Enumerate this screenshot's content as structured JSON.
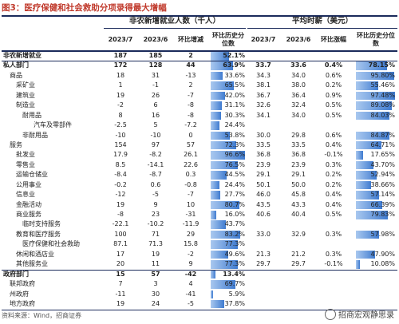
{
  "title": "图3：医疗保健和社会救助分项录得最大增幅",
  "headers": {
    "group_jobs": "非农新增就业人数（千人）",
    "group_wage": "平均时薪（美元）",
    "cols": [
      "2023/7",
      "2023/6",
      "环比增减",
      "环比历史分位数",
      "2023/7",
      "2023/6",
      "环比涨幅",
      "环比历史分位数"
    ]
  },
  "rows": [
    {
      "name": "非农新增就业",
      "bold": true,
      "indent": 0,
      "j7": "187",
      "j6": "185",
      "jd": "2",
      "jp": "52.1%",
      "jpv": 52.1,
      "w7": "",
      "w6": "",
      "wd": "",
      "wp": "",
      "wpv": null
    },
    {
      "name": "私人部门",
      "bold": true,
      "indent": 0,
      "j7": "172",
      "j6": "128",
      "jd": "44",
      "jp": "63.9%",
      "jpv": 63.9,
      "w7": "33.7",
      "w6": "33.6",
      "wd": "0.4%",
      "wp": "78.15%",
      "wpv": 78.15
    },
    {
      "name": "商品",
      "bold": false,
      "indent": 1,
      "j7": "18",
      "j6": "31",
      "jd": "-13",
      "jp": "33.6%",
      "jpv": 33.6,
      "w7": "34.3",
      "w6": "34.0",
      "wd": "0.6%",
      "wp": "95.80%",
      "wpv": 95.8
    },
    {
      "name": "采矿业",
      "bold": false,
      "indent": 2,
      "j7": "1",
      "j6": "-1",
      "jd": "2",
      "jp": "65.5%",
      "jpv": 65.5,
      "w7": "38.1",
      "w6": "38.0",
      "wd": "0.2%",
      "wp": "55.46%",
      "wpv": 55.46
    },
    {
      "name": "建筑业",
      "bold": false,
      "indent": 2,
      "j7": "19",
      "j6": "26",
      "jd": "-7",
      "jp": "42.0%",
      "jpv": 42.0,
      "w7": "36.7",
      "w6": "36.4",
      "wd": "0.9%",
      "wp": "97.48%",
      "wpv": 97.48
    },
    {
      "name": "制造业",
      "bold": false,
      "indent": 2,
      "j7": "-2",
      "j6": "6",
      "jd": "-8",
      "jp": "31.1%",
      "jpv": 31.1,
      "w7": "32.6",
      "w6": "32.4",
      "wd": "0.5%",
      "wp": "89.08%",
      "wpv": 89.08
    },
    {
      "name": "耐用品",
      "bold": false,
      "indent": 3,
      "j7": "8",
      "j6": "16",
      "jd": "-8",
      "jp": "30.3%",
      "jpv": 30.3,
      "w7": "34.1",
      "w6": "34.0",
      "wd": "0.5%",
      "wp": "84.03%",
      "wpv": 84.03
    },
    {
      "name": "汽车及零部件",
      "bold": false,
      "indent": 4,
      "j7": "-2.5",
      "j6": "5",
      "jd": "-7.2",
      "jp": "24.4%",
      "jpv": 24.4,
      "w7": "",
      "w6": "",
      "wd": "",
      "wp": "",
      "wpv": null
    },
    {
      "name": "非耐用品",
      "bold": false,
      "indent": 3,
      "j7": "-10",
      "j6": "-10",
      "jd": "0",
      "jp": "53.8%",
      "jpv": 53.8,
      "w7": "30.0",
      "w6": "29.8",
      "wd": "0.6%",
      "wp": "84.87%",
      "wpv": 84.87
    },
    {
      "name": "服务",
      "bold": false,
      "indent": 1,
      "j7": "154",
      "j6": "97",
      "jd": "57",
      "jp": "72.3%",
      "jpv": 72.3,
      "w7": "33.5",
      "w6": "33.5",
      "wd": "0.4%",
      "wp": "64.71%",
      "wpv": 64.71
    },
    {
      "name": "批发业",
      "bold": false,
      "indent": 2,
      "j7": "17.9",
      "j6": "-8.2",
      "jd": "26.1",
      "jp": "96.6%",
      "jpv": 96.6,
      "w7": "36.8",
      "w6": "36.8",
      "wd": "-0.1%",
      "wp": "17.65%",
      "wpv": 17.65
    },
    {
      "name": "零售业",
      "bold": false,
      "indent": 2,
      "j7": "8.5",
      "j6": "-14.1",
      "jd": "22.6",
      "jp": "76.5%",
      "jpv": 76.5,
      "w7": "23.9",
      "w6": "23.9",
      "wd": "0.3%",
      "wp": "43.70%",
      "wpv": 43.7
    },
    {
      "name": "运输仓储业",
      "bold": false,
      "indent": 2,
      "j7": "-8.4",
      "j6": "-8.7",
      "jd": "0.3",
      "jp": "44.5%",
      "jpv": 44.5,
      "w7": "29.1",
      "w6": "29.1",
      "wd": "0.2%",
      "wp": "52.94%",
      "wpv": 52.94
    },
    {
      "name": "公用事业",
      "bold": false,
      "indent": 2,
      "j7": "-0.2",
      "j6": "0.6",
      "jd": "-0.8",
      "jp": "24.4%",
      "jpv": 24.4,
      "w7": "50.1",
      "w6": "50.0",
      "wd": "0.2%",
      "wp": "38.66%",
      "wpv": 38.66
    },
    {
      "name": "信息业",
      "bold": false,
      "indent": 2,
      "j7": "-12",
      "j6": "-5",
      "jd": "-7",
      "jp": "27.7%",
      "jpv": 27.7,
      "w7": "46.0",
      "w6": "45.8",
      "wd": "0.4%",
      "wp": "57.14%",
      "wpv": 57.14
    },
    {
      "name": "金融活动",
      "bold": false,
      "indent": 2,
      "j7": "19",
      "j6": "9",
      "jd": "10",
      "jp": "80.7%",
      "jpv": 80.7,
      "w7": "43.5",
      "w6": "43.3",
      "wd": "0.4%",
      "wp": "66.39%",
      "wpv": 66.39
    },
    {
      "name": "商业服务",
      "bold": false,
      "indent": 2,
      "j7": "-8",
      "j6": "23",
      "jd": "-31",
      "jp": "16.0%",
      "jpv": 16.0,
      "w7": "40.6",
      "w6": "40.4",
      "wd": "0.5%",
      "wp": "79.83%",
      "wpv": 79.83
    },
    {
      "name": "临时支持服务",
      "bold": false,
      "indent": 3,
      "j7": "-22.1",
      "j6": "-10.2",
      "jd": "-11.9",
      "jp": "43.7%",
      "jpv": 43.7,
      "w7": "",
      "w6": "",
      "wd": "",
      "wp": "",
      "wpv": null
    },
    {
      "name": "教育和医疗服务",
      "bold": false,
      "indent": 2,
      "j7": "100",
      "j6": "71",
      "jd": "29",
      "jp": "83.2%",
      "jpv": 83.2,
      "w7": "33.0",
      "w6": "32.9",
      "wd": "0.3%",
      "wp": "57.98%",
      "wpv": 57.98
    },
    {
      "name": "医疗保健和社会救助",
      "bold": false,
      "indent": 3,
      "j7": "87.1",
      "j6": "71.3",
      "jd": "15.8",
      "jp": "77.3%",
      "jpv": 77.3,
      "w7": "",
      "w6": "",
      "wd": "",
      "wp": "",
      "wpv": null
    },
    {
      "name": "休闲和酒店业",
      "bold": false,
      "indent": 2,
      "j7": "17",
      "j6": "19",
      "jd": "-2",
      "jp": "49.6%",
      "jpv": 49.6,
      "w7": "21.3",
      "w6": "21.2",
      "wd": "0.3%",
      "wp": "47.90%",
      "wpv": 47.9
    },
    {
      "name": "其他服务业",
      "bold": false,
      "indent": 2,
      "j7": "20",
      "j6": "11",
      "jd": "9",
      "jp": "77.3%",
      "jpv": 77.3,
      "w7": "29.7",
      "w6": "29.7",
      "wd": "-0.1%",
      "wp": "10.08%",
      "wpv": 10.08
    },
    {
      "name": "政府部门",
      "bold": true,
      "indent": 0,
      "j7": "15",
      "j6": "57",
      "jd": "-42",
      "jp": "13.4%",
      "jpv": 13.4,
      "w7": "",
      "w6": "",
      "wd": "",
      "wp": "",
      "wpv": null
    },
    {
      "name": "联邦政府",
      "bold": false,
      "indent": 1,
      "j7": "7",
      "j6": "3",
      "jd": "4",
      "jp": "69.7%",
      "jpv": 69.7,
      "w7": "",
      "w6": "",
      "wd": "",
      "wp": "",
      "wpv": null
    },
    {
      "name": "州政府",
      "bold": false,
      "indent": 1,
      "j7": "-11",
      "j6": "30",
      "jd": "-41",
      "jp": "5.9%",
      "jpv": 5.9,
      "w7": "",
      "w6": "",
      "wd": "",
      "wp": "",
      "wpv": null
    },
    {
      "name": "地方政府",
      "bold": false,
      "indent": 1,
      "j7": "19",
      "j6": "24",
      "jd": "-5",
      "jp": "37.8%",
      "jpv": 37.8,
      "w7": "",
      "w6": "",
      "wd": "",
      "wp": "",
      "wpv": null
    }
  ],
  "footer": "资料来源：Wind，招商证券",
  "watermark": "招商宏观静思录",
  "colors": {
    "title": "#c0392b",
    "rule": "#1b2b5b",
    "bar_start": "#a9c8ef",
    "bar_end": "#3f7bd0"
  }
}
